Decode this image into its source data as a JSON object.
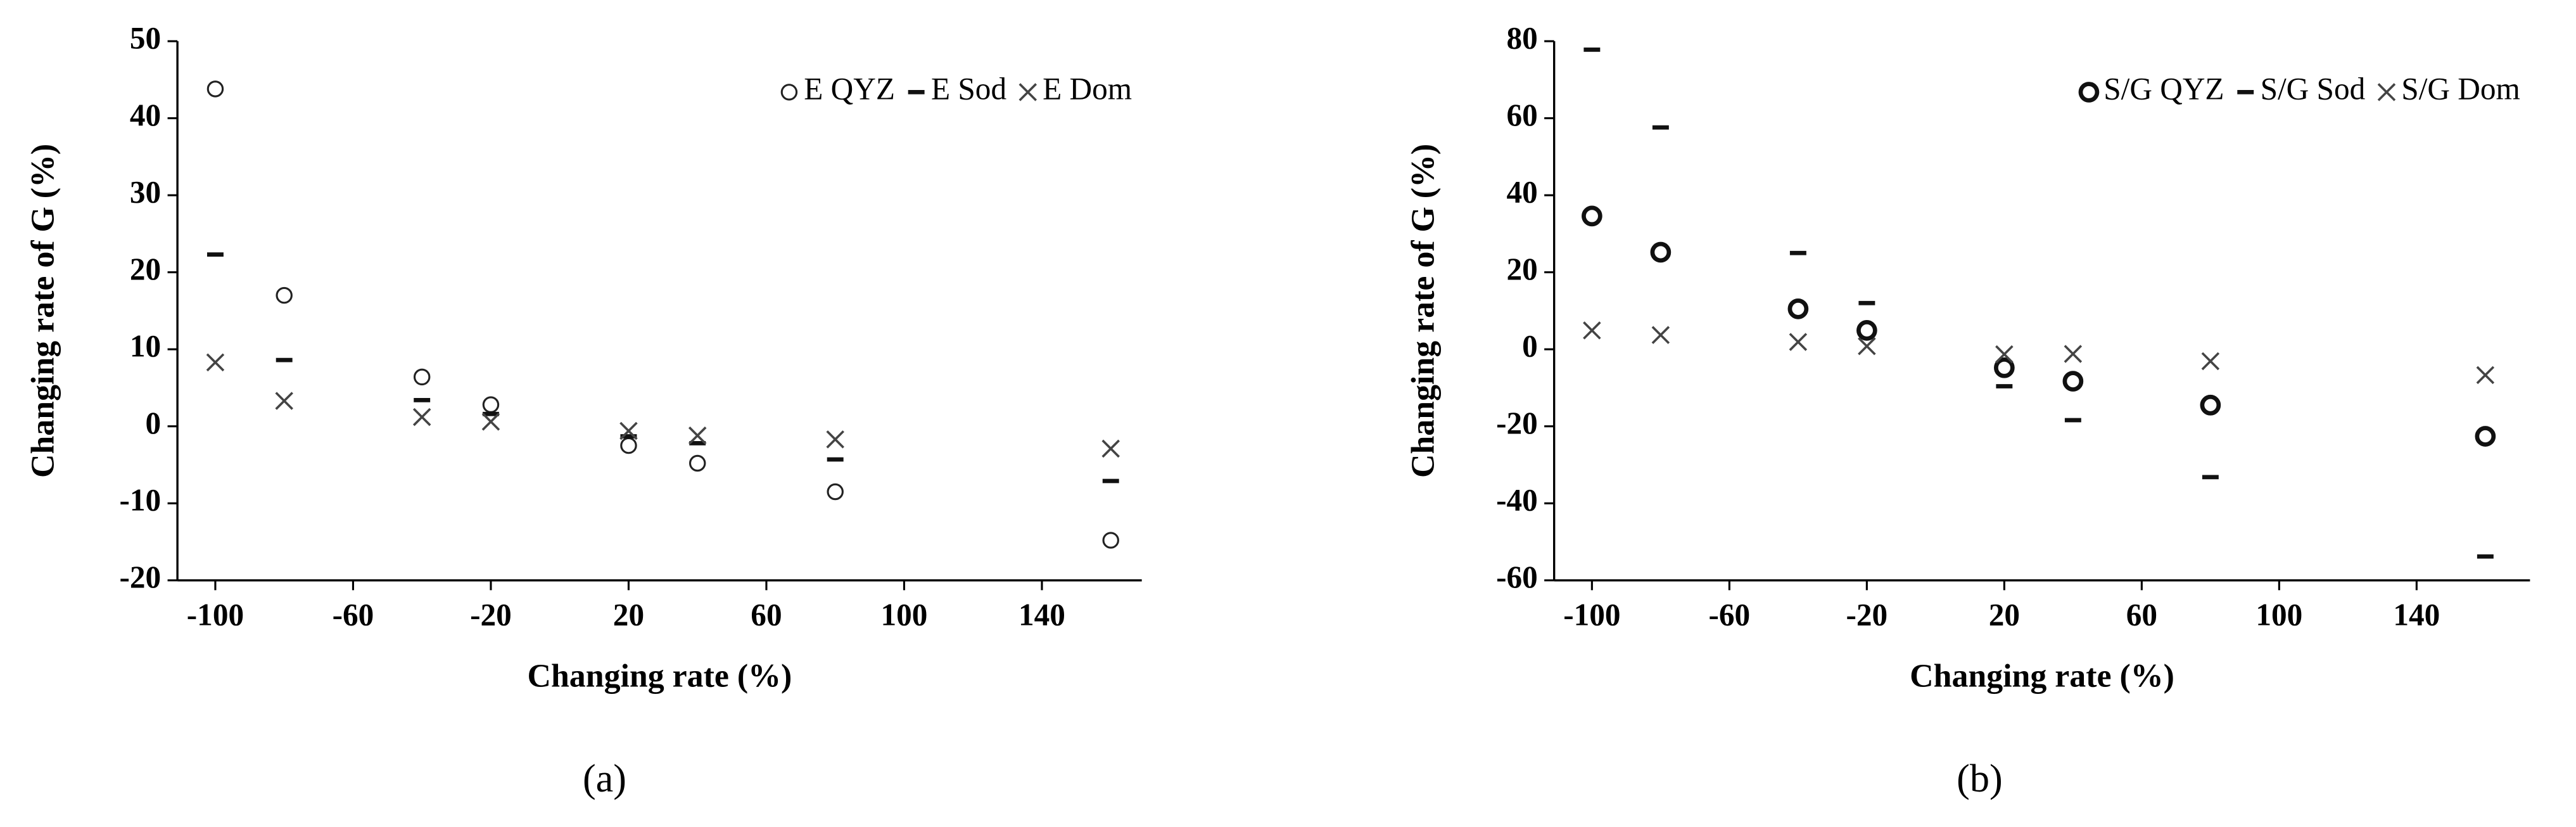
{
  "chart_data": [
    {
      "type": "scatter",
      "xlabel": "Changing rate (%)",
      "ylabel": "Changing rate of G (%)",
      "caption": "(a)",
      "x": [
        -100,
        -80,
        -40,
        -20,
        20,
        40,
        80,
        160
      ],
      "series": [
        {
          "name": "E QYZ",
          "marker": "circle",
          "color": "#222222",
          "values": [
            43.8,
            17,
            6.4,
            2.8,
            -2.5,
            -4.8,
            -8.5,
            -14.8
          ]
        },
        {
          "name": "E Sod",
          "marker": "dash",
          "color": "#111111",
          "values": [
            22.3,
            8.6,
            3.4,
            1.6,
            -1.3,
            -2.2,
            -4.3,
            -7.1
          ]
        },
        {
          "name": "E Dom",
          "marker": "x",
          "color": "#444444",
          "values": [
            8.3,
            3.3,
            1.2,
            0.6,
            -0.6,
            -1.2,
            -1.7,
            -2.9
          ]
        }
      ],
      "xlim": [
        -111,
        169
      ],
      "xticks": [
        -100,
        -60,
        -20,
        20,
        60,
        100,
        140
      ],
      "ylim": [
        -20,
        50
      ],
      "yticks": [
        -20,
        -10,
        0,
        10,
        20,
        30,
        40,
        50
      ],
      "legend": "upper right"
    },
    {
      "type": "scatter",
      "xlabel": "Changing rate (%)",
      "ylabel": "Changing rate of G (%)",
      "caption": "(b)",
      "x": [
        -100,
        -80,
        -40,
        -20,
        20,
        40,
        80,
        160
      ],
      "series": [
        {
          "name": "S/G QYZ",
          "marker": "circle-bold",
          "color": "#111111",
          "values": [
            34.6,
            25.2,
            10.5,
            4.9,
            -4.8,
            -8.3,
            -14.5,
            -22.6
          ]
        },
        {
          "name": "S/G Sod",
          "marker": "dash",
          "color": "#111111",
          "values": [
            77.8,
            57.6,
            25,
            12,
            -9.6,
            -18.4,
            -33.2,
            -53.8
          ]
        },
        {
          "name": "S/G Dom",
          "marker": "x",
          "color": "#444444",
          "values": [
            4.9,
            3.7,
            1.9,
            0.8,
            -1.3,
            -1.2,
            -3.1,
            -6.7
          ]
        }
      ],
      "xlim": [
        -111,
        173
      ],
      "xticks": [
        -100,
        -60,
        -20,
        20,
        60,
        100,
        140
      ],
      "ylim": [
        -60,
        80
      ],
      "yticks": [
        -60,
        -40,
        -20,
        0,
        20,
        40,
        60,
        80
      ],
      "legend": "upper right"
    }
  ]
}
